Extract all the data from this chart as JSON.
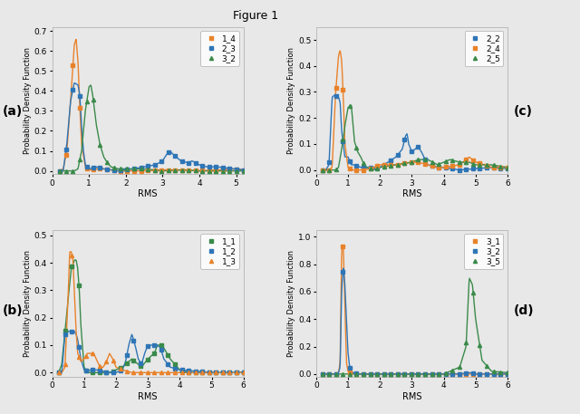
{
  "title": "Figure 1",
  "bg_color": "#e8e8e8",
  "ax_bg_color": "#e8e8e8",
  "colors": {
    "orange": "#E8822A",
    "blue": "#2E75B6",
    "green": "#3A8A4A"
  },
  "subplot_a": {
    "label": "(a)",
    "legend": [
      "1_4",
      "2_3",
      "3_2"
    ],
    "color_order": [
      "orange",
      "blue",
      "green"
    ],
    "marker_order": [
      "s",
      "s",
      "^"
    ],
    "xlim": [
      0.1,
      5.2
    ],
    "ylim": [
      -0.015,
      0.72
    ],
    "yticks": [
      0.0,
      0.1,
      0.2,
      0.3,
      0.4,
      0.5,
      0.6,
      0.7
    ],
    "xticks": [
      0,
      1,
      2,
      3,
      4,
      5
    ],
    "curves": {
      "orange": {
        "x": [
          0.2,
          0.3,
          0.4,
          0.5,
          0.6,
          0.65,
          0.7,
          0.75,
          0.8,
          0.9,
          1.0,
          1.1,
          1.2,
          1.4,
          1.6,
          1.8,
          2.0,
          2.5,
          3.0,
          3.5,
          4.0,
          4.5,
          5.0,
          5.2
        ],
        "y": [
          0.0,
          0.01,
          0.1,
          0.35,
          0.63,
          0.66,
          0.55,
          0.32,
          0.13,
          0.02,
          0.005,
          0.005,
          0.01,
          0.01,
          0.005,
          0.0,
          0.0,
          0.0,
          0.005,
          0.005,
          0.0,
          0.005,
          0.01,
          0.005
        ]
      },
      "blue": {
        "x": [
          0.2,
          0.3,
          0.4,
          0.5,
          0.6,
          0.7,
          0.75,
          0.8,
          0.85,
          0.9,
          1.0,
          1.1,
          1.2,
          1.4,
          1.6,
          1.8,
          2.0,
          2.2,
          2.5,
          2.8,
          3.0,
          3.1,
          3.2,
          3.3,
          3.5,
          3.7,
          3.8,
          4.0,
          4.2,
          4.5,
          4.7,
          5.0,
          5.2
        ],
        "y": [
          0.0,
          0.0,
          0.14,
          0.35,
          0.44,
          0.43,
          0.38,
          0.22,
          0.1,
          0.03,
          0.01,
          0.015,
          0.02,
          0.01,
          0.005,
          0.0,
          0.005,
          0.01,
          0.02,
          0.03,
          0.05,
          0.08,
          0.1,
          0.08,
          0.05,
          0.04,
          0.05,
          0.03,
          0.02,
          0.02,
          0.015,
          0.01,
          0.005
        ]
      },
      "green": {
        "x": [
          0.2,
          0.3,
          0.4,
          0.5,
          0.6,
          0.7,
          0.8,
          0.9,
          1.0,
          1.05,
          1.1,
          1.2,
          1.3,
          1.4,
          1.5,
          1.6,
          1.8,
          2.0,
          2.2,
          2.5,
          3.0,
          3.5,
          4.0,
          4.5,
          5.0,
          5.2
        ],
        "y": [
          0.0,
          0.0,
          0.0,
          0.0,
          0.0,
          0.01,
          0.1,
          0.3,
          0.42,
          0.43,
          0.38,
          0.23,
          0.13,
          0.07,
          0.04,
          0.02,
          0.01,
          0.01,
          0.01,
          0.01,
          0.0,
          0.005,
          0.0,
          0.0,
          0.0,
          0.0
        ]
      }
    }
  },
  "subplot_b": {
    "label": "(b)",
    "legend": [
      "1_1",
      "1_2",
      "1_3"
    ],
    "color_order": [
      "green",
      "blue",
      "orange"
    ],
    "marker_order": [
      "s",
      "s",
      "^"
    ],
    "xlim": [
      0.1,
      6.0
    ],
    "ylim": [
      -0.015,
      0.52
    ],
    "yticks": [
      0.0,
      0.1,
      0.2,
      0.3,
      0.4,
      0.5
    ],
    "xticks": [
      0,
      1,
      2,
      3,
      4,
      5,
      6
    ],
    "curves": {
      "green": {
        "x": [
          0.2,
          0.3,
          0.4,
          0.5,
          0.6,
          0.7,
          0.75,
          0.8,
          0.85,
          0.9,
          1.0,
          1.1,
          1.2,
          1.4,
          1.6,
          1.8,
          2.0,
          2.2,
          2.4,
          2.5,
          2.6,
          2.8,
          3.0,
          3.2,
          3.3,
          3.4,
          3.5,
          3.6,
          3.7,
          4.0,
          4.3,
          4.5,
          5.0,
          5.5,
          6.0
        ],
        "y": [
          0.0,
          0.03,
          0.15,
          0.27,
          0.38,
          0.41,
          0.41,
          0.38,
          0.3,
          0.17,
          0.02,
          0.0,
          0.0,
          0.0,
          0.0,
          0.0,
          0.01,
          0.02,
          0.04,
          0.05,
          0.04,
          0.02,
          0.05,
          0.07,
          0.1,
          0.1,
          0.09,
          0.07,
          0.05,
          0.01,
          0.0,
          0.0,
          0.0,
          0.0,
          0.0
        ]
      },
      "blue": {
        "x": [
          0.2,
          0.3,
          0.4,
          0.5,
          0.6,
          0.7,
          0.75,
          0.8,
          0.9,
          1.0,
          1.1,
          1.2,
          1.4,
          1.6,
          1.8,
          2.0,
          2.2,
          2.3,
          2.4,
          2.5,
          2.6,
          2.7,
          2.8,
          2.9,
          3.0,
          3.1,
          3.2,
          3.3,
          3.4,
          3.5,
          3.7,
          4.0,
          4.5,
          5.0,
          5.5,
          6.0
        ],
        "y": [
          0.0,
          0.0,
          0.14,
          0.15,
          0.15,
          0.15,
          0.14,
          0.12,
          0.05,
          0.01,
          0.005,
          0.01,
          0.01,
          0.005,
          0.0,
          0.0,
          0.01,
          0.04,
          0.1,
          0.14,
          0.1,
          0.05,
          0.03,
          0.07,
          0.1,
          0.1,
          0.1,
          0.1,
          0.09,
          0.05,
          0.02,
          0.01,
          0.005,
          0.0,
          0.0,
          0.0
        ]
      },
      "orange": {
        "x": [
          0.2,
          0.3,
          0.4,
          0.5,
          0.55,
          0.6,
          0.65,
          0.7,
          0.75,
          0.8,
          0.9,
          1.0,
          1.1,
          1.3,
          1.5,
          1.6,
          1.7,
          1.8,
          1.9,
          2.0,
          2.2,
          2.5,
          3.0,
          3.5,
          4.0,
          5.0,
          6.0
        ],
        "y": [
          0.0,
          0.0,
          0.02,
          0.28,
          0.44,
          0.44,
          0.41,
          0.28,
          0.15,
          0.07,
          0.04,
          0.05,
          0.07,
          0.07,
          0.02,
          0.02,
          0.04,
          0.07,
          0.05,
          0.02,
          0.01,
          0.0,
          0.0,
          0.0,
          0.0,
          0.0,
          0.0
        ]
      }
    }
  },
  "subplot_c": {
    "label": "(c)",
    "legend": [
      "2_2",
      "2_4",
      "2_5"
    ],
    "color_order": [
      "blue",
      "orange",
      "green"
    ],
    "marker_order": [
      "s",
      "s",
      "^"
    ],
    "xlim": [
      0.1,
      6.0
    ],
    "ylim": [
      -0.015,
      0.55
    ],
    "yticks": [
      0.0,
      0.1,
      0.2,
      0.3,
      0.4,
      0.5
    ],
    "xticks": [
      0,
      1,
      2,
      3,
      4,
      5,
      6
    ],
    "curves": {
      "blue": {
        "x": [
          0.2,
          0.3,
          0.4,
          0.5,
          0.6,
          0.65,
          0.7,
          0.75,
          0.8,
          0.9,
          1.0,
          1.1,
          1.2,
          1.4,
          1.6,
          1.8,
          2.0,
          2.5,
          2.7,
          2.8,
          2.85,
          2.9,
          3.0,
          3.1,
          3.2,
          3.3,
          3.5,
          3.8,
          4.0,
          4.5,
          5.0,
          5.5,
          6.0
        ],
        "y": [
          0.0,
          0.0,
          0.02,
          0.28,
          0.29,
          0.28,
          0.28,
          0.26,
          0.15,
          0.05,
          0.05,
          0.02,
          0.02,
          0.01,
          0.01,
          0.005,
          0.01,
          0.05,
          0.08,
          0.13,
          0.14,
          0.1,
          0.07,
          0.08,
          0.09,
          0.07,
          0.02,
          0.01,
          0.01,
          0.0,
          0.005,
          0.01,
          0.005
        ]
      },
      "orange": {
        "x": [
          0.2,
          0.3,
          0.4,
          0.5,
          0.6,
          0.7,
          0.75,
          0.8,
          0.85,
          0.9,
          1.0,
          1.1,
          1.3,
          1.5,
          1.8,
          2.0,
          2.5,
          3.0,
          3.2,
          3.5,
          3.8,
          4.0,
          4.5,
          4.8,
          5.0,
          5.3,
          5.5,
          6.0
        ],
        "y": [
          0.0,
          0.0,
          0.0,
          0.01,
          0.28,
          0.44,
          0.46,
          0.42,
          0.28,
          0.1,
          0.01,
          0.0,
          0.0,
          0.0,
          0.01,
          0.02,
          0.02,
          0.03,
          0.03,
          0.02,
          0.01,
          0.01,
          0.02,
          0.05,
          0.03,
          0.02,
          0.01,
          0.01
        ]
      },
      "green": {
        "x": [
          0.2,
          0.3,
          0.4,
          0.5,
          0.6,
          0.7,
          0.8,
          0.9,
          1.0,
          1.1,
          1.2,
          1.3,
          1.4,
          1.5,
          1.6,
          1.8,
          2.0,
          2.5,
          3.0,
          3.2,
          3.5,
          3.8,
          4.0,
          4.2,
          4.5,
          4.8,
          5.0,
          5.5,
          6.0
        ],
        "y": [
          0.0,
          0.0,
          0.0,
          0.0,
          0.0,
          0.01,
          0.08,
          0.17,
          0.24,
          0.25,
          0.11,
          0.07,
          0.05,
          0.02,
          0.01,
          0.0,
          0.01,
          0.02,
          0.03,
          0.04,
          0.04,
          0.02,
          0.03,
          0.04,
          0.03,
          0.03,
          0.02,
          0.02,
          0.01
        ]
      }
    }
  },
  "subplot_d": {
    "label": "(d)",
    "legend": [
      "3_1",
      "3_2",
      "3_5"
    ],
    "color_order": [
      "orange",
      "blue",
      "green"
    ],
    "marker_order": [
      "s",
      "s",
      "^"
    ],
    "xlim": [
      0.1,
      6.0
    ],
    "ylim": [
      -0.02,
      1.05
    ],
    "yticks": [
      0.0,
      0.2,
      0.4,
      0.6,
      0.8,
      1.0
    ],
    "xticks": [
      0,
      1,
      2,
      3,
      4,
      5,
      6
    ],
    "curves": {
      "orange": {
        "x": [
          0.2,
          0.4,
          0.6,
          0.7,
          0.75,
          0.8,
          0.85,
          0.9,
          0.95,
          1.0,
          1.1,
          1.2,
          1.4,
          1.6,
          2.0,
          2.5,
          3.0,
          4.0,
          5.0,
          6.0
        ],
        "y": [
          0.0,
          0.0,
          0.0,
          0.01,
          0.08,
          0.92,
          0.93,
          0.5,
          0.08,
          0.02,
          0.01,
          0.0,
          0.0,
          0.0,
          0.0,
          0.0,
          0.0,
          0.0,
          0.0,
          0.0
        ]
      },
      "blue": {
        "x": [
          0.2,
          0.4,
          0.6,
          0.7,
          0.75,
          0.8,
          0.85,
          0.9,
          0.95,
          1.0,
          1.05,
          1.1,
          1.15,
          1.2,
          1.3,
          1.4,
          1.5,
          1.6,
          1.8,
          2.0,
          2.5,
          3.0,
          3.5,
          4.0,
          4.5,
          4.8,
          5.0,
          5.5,
          6.0
        ],
        "y": [
          0.0,
          0.0,
          0.0,
          0.01,
          0.05,
          0.62,
          0.78,
          0.65,
          0.37,
          0.15,
          0.05,
          0.02,
          0.01,
          0.01,
          0.0,
          0.0,
          0.0,
          0.0,
          0.0,
          0.0,
          0.0,
          0.0,
          0.0,
          0.0,
          0.0,
          0.01,
          0.0,
          0.0,
          0.0
        ]
      },
      "green": {
        "x": [
          0.2,
          0.4,
          0.6,
          0.8,
          1.0,
          1.2,
          1.4,
          1.6,
          1.8,
          2.0,
          2.2,
          2.5,
          3.0,
          3.5,
          4.0,
          4.5,
          4.7,
          4.8,
          4.9,
          5.0,
          5.2,
          5.5,
          6.0
        ],
        "y": [
          0.0,
          0.0,
          0.0,
          0.0,
          0.0,
          0.0,
          0.0,
          0.0,
          0.0,
          0.0,
          0.0,
          0.0,
          0.0,
          0.0,
          0.0,
          0.05,
          0.2,
          0.7,
          0.65,
          0.4,
          0.1,
          0.02,
          0.01
        ]
      }
    }
  }
}
